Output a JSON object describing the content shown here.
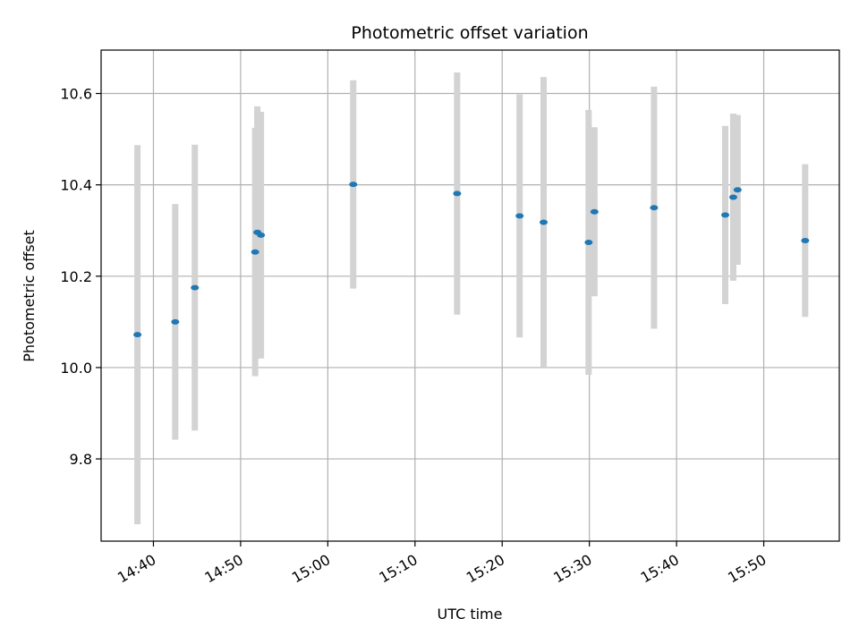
{
  "chart_data": {
    "type": "scatter",
    "title": "Photometric offset variation",
    "xlabel": "UTC time",
    "ylabel": "Photometric offset",
    "x_tick_labels": [
      "14:40",
      "14:50",
      "15:00",
      "15:10",
      "15:20",
      "15:30",
      "15:40",
      "15:50"
    ],
    "x_tick_times": [
      "14:40",
      "14:50",
      "15:00",
      "15:10",
      "15:20",
      "15:30",
      "15:40",
      "15:50"
    ],
    "y_tick_labels": [
      "9.8",
      "10.0",
      "10.2",
      "10.4",
      "10.6"
    ],
    "y_ticks": [
      9.8,
      10.0,
      10.2,
      10.4,
      10.6
    ],
    "xlim": [
      "14:34:00",
      "15:58:40"
    ],
    "ylim": [
      9.62,
      10.695
    ],
    "grid": true,
    "colors": {
      "point": "#1f77b4",
      "errorbar": "#d3d3d3",
      "grid": "#b0b0b0"
    },
    "points": [
      {
        "time": "14:38:10",
        "y": 10.072,
        "yerr": 0.415
      },
      {
        "time": "14:42:30",
        "y": 10.1,
        "yerr": 0.258
      },
      {
        "time": "14:44:45",
        "y": 10.175,
        "yerr": 0.313
      },
      {
        "time": "14:51:40",
        "y": 10.253,
        "yerr": 0.272
      },
      {
        "time": "14:51:55",
        "y": 10.296,
        "yerr": 0.276
      },
      {
        "time": "14:52:20",
        "y": 10.29,
        "yerr": 0.27
      },
      {
        "time": "15:02:55",
        "y": 10.401,
        "yerr": 0.228
      },
      {
        "time": "15:14:50",
        "y": 10.381,
        "yerr": 0.265
      },
      {
        "time": "15:22:00",
        "y": 10.332,
        "yerr": 0.266
      },
      {
        "time": "15:24:45",
        "y": 10.318,
        "yerr": 0.318
      },
      {
        "time": "15:29:55",
        "y": 10.274,
        "yerr": 0.29
      },
      {
        "time": "15:30:35",
        "y": 10.341,
        "yerr": 0.185
      },
      {
        "time": "15:37:25",
        "y": 10.35,
        "yerr": 0.265
      },
      {
        "time": "15:45:35",
        "y": 10.334,
        "yerr": 0.195
      },
      {
        "time": "15:46:30",
        "y": 10.373,
        "yerr": 0.183
      },
      {
        "time": "15:47:00",
        "y": 10.389,
        "yerr": 0.164
      },
      {
        "time": "15:54:45",
        "y": 10.278,
        "yerr": 0.167
      }
    ]
  }
}
